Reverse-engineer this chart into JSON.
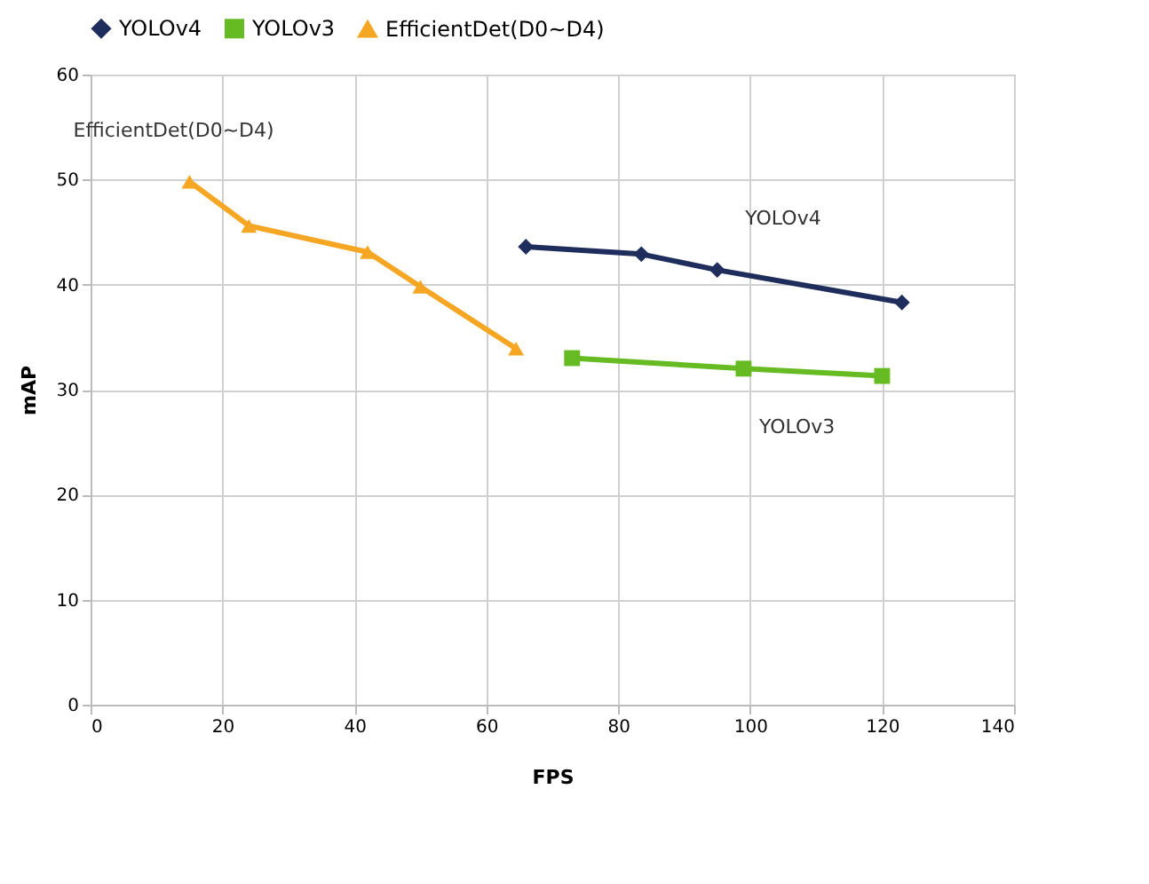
{
  "chart_data": {
    "type": "line",
    "xlabel": "FPS",
    "ylabel": "mAP",
    "xlim": [
      0,
      140
    ],
    "xticks": [
      0,
      20,
      40,
      60,
      80,
      100,
      120,
      140
    ],
    "ylim": [
      0,
      60
    ],
    "yticks": [
      0,
      10,
      20,
      30,
      40,
      50,
      60
    ],
    "grid": true,
    "legend": "top",
    "series": [
      {
        "name": "YOLOv4",
        "color": "#1f2d5c",
        "marker": "diamond",
        "x": [
          66,
          83.5,
          95,
          123
        ],
        "values": [
          43.6,
          42.9,
          41.4,
          38.3
        ]
      },
      {
        "name": "YOLOv3",
        "color": "#66bb22",
        "marker": "square",
        "x": [
          73,
          99,
          120
        ],
        "values": [
          33,
          32,
          31.3
        ]
      },
      {
        "name": "EfficientDet(D0~D4)",
        "color": "#f5a623",
        "marker": "triangle",
        "x": [
          15,
          24,
          42,
          50,
          64.5
        ],
        "values": [
          49.8,
          45.6,
          43.1,
          39.8,
          33.9
        ]
      }
    ],
    "annotations": [
      "EfficientDet(D0~D4)",
      "YOLOv4",
      "YOLOv3"
    ]
  }
}
